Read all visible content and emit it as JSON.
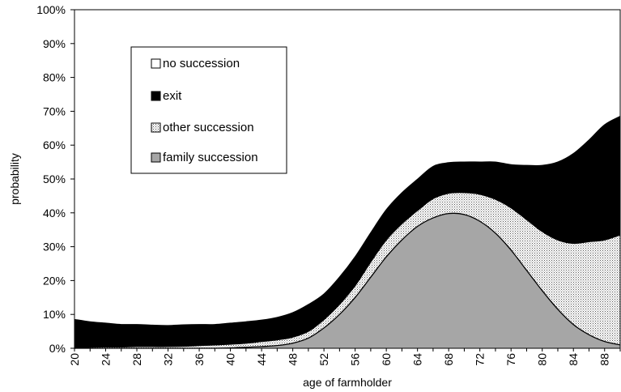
{
  "chart_data": {
    "type": "area",
    "stacked": true,
    "xlabel": "age of farmholder",
    "ylabel": "probability",
    "xlim": [
      20,
      90
    ],
    "ylim": [
      0,
      100
    ],
    "x_ticks": [
      "20",
      "24",
      "28",
      "32",
      "36",
      "40",
      "44",
      "48",
      "52",
      "56",
      "60",
      "64",
      "68",
      "72",
      "76",
      "80",
      "84",
      "88"
    ],
    "y_ticks": [
      "0%",
      "10%",
      "20%",
      "30%",
      "40%",
      "50%",
      "60%",
      "70%",
      "80%",
      "90%",
      "100%"
    ],
    "grid": false,
    "legend_position": "top-left",
    "legend": [
      "no succession",
      "exit",
      "other succession",
      "family succession"
    ],
    "x": [
      20,
      22,
      24,
      26,
      28,
      30,
      32,
      34,
      36,
      38,
      40,
      42,
      44,
      46,
      48,
      50,
      52,
      54,
      56,
      58,
      60,
      62,
      64,
      66,
      68,
      70,
      72,
      74,
      76,
      78,
      80,
      82,
      84,
      86,
      88,
      90
    ],
    "series": [
      {
        "name": "family succession",
        "color": "#a6a6a6",
        "pattern": "solid",
        "values": [
          0,
          0,
          0,
          0,
          0,
          0,
          0,
          0,
          0,
          0,
          0.1,
          0.3,
          0.5,
          0.8,
          1.5,
          3,
          6,
          10,
          15,
          21,
          27,
          32,
          36,
          38.5,
          39.8,
          39.5,
          37.5,
          34,
          29,
          23,
          17,
          11.5,
          7,
          4,
          2,
          1
        ]
      },
      {
        "name": "other succession",
        "color": "#e0e0e0",
        "pattern": "dots",
        "values": [
          0,
          0.3,
          0.4,
          0.4,
          0.5,
          0.5,
          0.5,
          0.6,
          0.8,
          1,
          1.1,
          1.2,
          1.5,
          1.7,
          1.8,
          2,
          2.5,
          3,
          3.5,
          4.5,
          5,
          4.8,
          4.7,
          5.7,
          6,
          6.5,
          8,
          10,
          12.5,
          15,
          17.5,
          20.5,
          24,
          27.5,
          30,
          32.5
        ]
      },
      {
        "name": "exit",
        "color": "#000000",
        "pattern": "solid",
        "values": [
          8.5,
          7.5,
          7,
          6.6,
          6.5,
          6.3,
          6.2,
          6.3,
          6.2,
          6,
          6.2,
          6.3,
          6.3,
          6.6,
          7.2,
          7.9,
          7.5,
          8,
          8.5,
          8.6,
          8.9,
          9.1,
          9.2,
          9.5,
          9,
          9,
          9.5,
          11,
          12.7,
          16,
          19.5,
          23,
          26.5,
          30,
          34,
          35
        ]
      },
      {
        "name": "no succession",
        "color": "#ffffff",
        "pattern": "solid",
        "values": [
          91.5,
          92.2,
          92.6,
          93,
          93,
          93.2,
          93.3,
          93.1,
          93,
          93,
          92.6,
          92.2,
          91.7,
          90.9,
          89.5,
          87.1,
          84,
          79,
          73,
          65.9,
          59.1,
          54.1,
          50.1,
          46.3,
          45.2,
          45,
          45,
          45,
          45.8,
          46,
          46,
          45,
          42.5,
          38.5,
          34,
          31.5
        ]
      }
    ]
  }
}
